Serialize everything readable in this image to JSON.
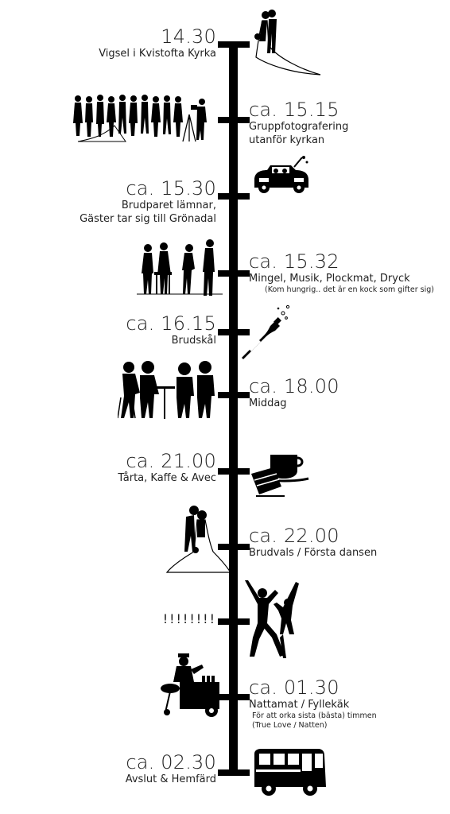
{
  "events": [
    {
      "time": "14.30",
      "label": "Vigsel i Kvistofta Kyrka",
      "note": "",
      "side": "left",
      "icon": "bride-groom-icon"
    },
    {
      "time": "ca. 15.15",
      "label": "Gruppfotografering\nutanför kyrkan",
      "note": "",
      "side": "right",
      "icon": "group-photo-icon"
    },
    {
      "time": "ca. 15.30",
      "label": "Brudparet lämnar,\nGäster tar sig till Grönadal",
      "note": "",
      "side": "left",
      "icon": "wedding-car-icon"
    },
    {
      "time": "ca. 15.32",
      "label": "Mingel, Musik, Plockmat, Dryck",
      "note": "(Kom hungrig.. det är en kock som gifter sig)",
      "side": "right",
      "icon": "mingle-icon"
    },
    {
      "time": "ca. 16.15",
      "label": "Brudskål",
      "note": "",
      "side": "left",
      "icon": "champagne-icon"
    },
    {
      "time": "ca. 18.00",
      "label": "Middag",
      "note": "",
      "side": "right",
      "icon": "dinner-icon"
    },
    {
      "time": "ca. 21.00",
      "label": "Tårta, Kaffe & Avec",
      "note": "",
      "side": "left",
      "icon": "cake-coffee-icon"
    },
    {
      "time": "ca. 22.00",
      "label": "Brudvals / Första dansen",
      "note": "",
      "side": "right",
      "icon": "first-dance-icon"
    },
    {
      "time": "!!!!!!!!",
      "label": "",
      "note": "",
      "side": "left",
      "icon": "party-dance-icon"
    },
    {
      "time": "ca. 01.30",
      "label": "Nattamat / Fyllekäk",
      "note": "För att orka sista (bästa) timmen\n(True Love / Natten)",
      "side": "right",
      "icon": "food-cart-icon"
    },
    {
      "time": "ca. 02.30",
      "label": "Avslut & Hemfärd",
      "note": "",
      "side": "left",
      "icon": "bus-icon"
    }
  ]
}
